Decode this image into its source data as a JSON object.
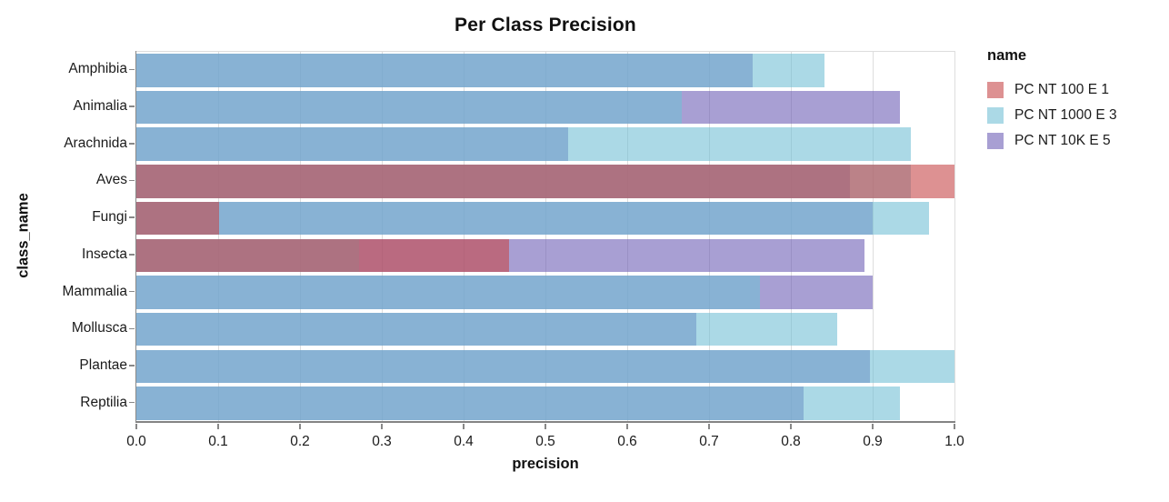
{
  "chart_data": {
    "type": "bar",
    "orientation": "horizontal",
    "overlap": true,
    "title": "Per Class Precision",
    "xlabel": "precision",
    "ylabel": "class_name",
    "legend_title": "name",
    "legend_position": "right",
    "categories": [
      "Amphibia",
      "Animalia",
      "Arachnida",
      "Aves",
      "Fungi",
      "Insecta",
      "Mammalia",
      "Mollusca",
      "Plantae",
      "Reptilia"
    ],
    "series": [
      {
        "name": "PC NT 100 E 1",
        "color": "#c64849",
        "values": [
          null,
          null,
          null,
          1.0,
          0.101,
          0.456,
          null,
          null,
          null,
          null
        ]
      },
      {
        "name": "PC NT 1000 E 3",
        "color": "#73c0d5",
        "values": [
          0.841,
          0.667,
          0.947,
          0.947,
          0.969,
          0.272,
          0.762,
          0.857,
          1.0,
          0.933
        ]
      },
      {
        "name": "PC NT 10K E 5",
        "color": "#6e5fb6",
        "values": [
          0.753,
          0.933,
          0.528,
          0.872,
          0.9,
          0.89,
          0.9,
          0.684,
          0.897,
          0.816
        ]
      }
    ],
    "bar_opacity": 0.6,
    "draw_order_note": "10K E 5 bottom, 1000 E 3 middle, 100 E 1 top; translucent overlap",
    "xlim": [
      0,
      1
    ],
    "x_ticks": [
      "0.0",
      "0.1",
      "0.2",
      "0.3",
      "0.4",
      "0.5",
      "0.6",
      "0.7",
      "0.8",
      "0.9",
      "1.0"
    ],
    "grid": true,
    "grid_color": "#dddddd",
    "axis_color": "#888888"
  }
}
